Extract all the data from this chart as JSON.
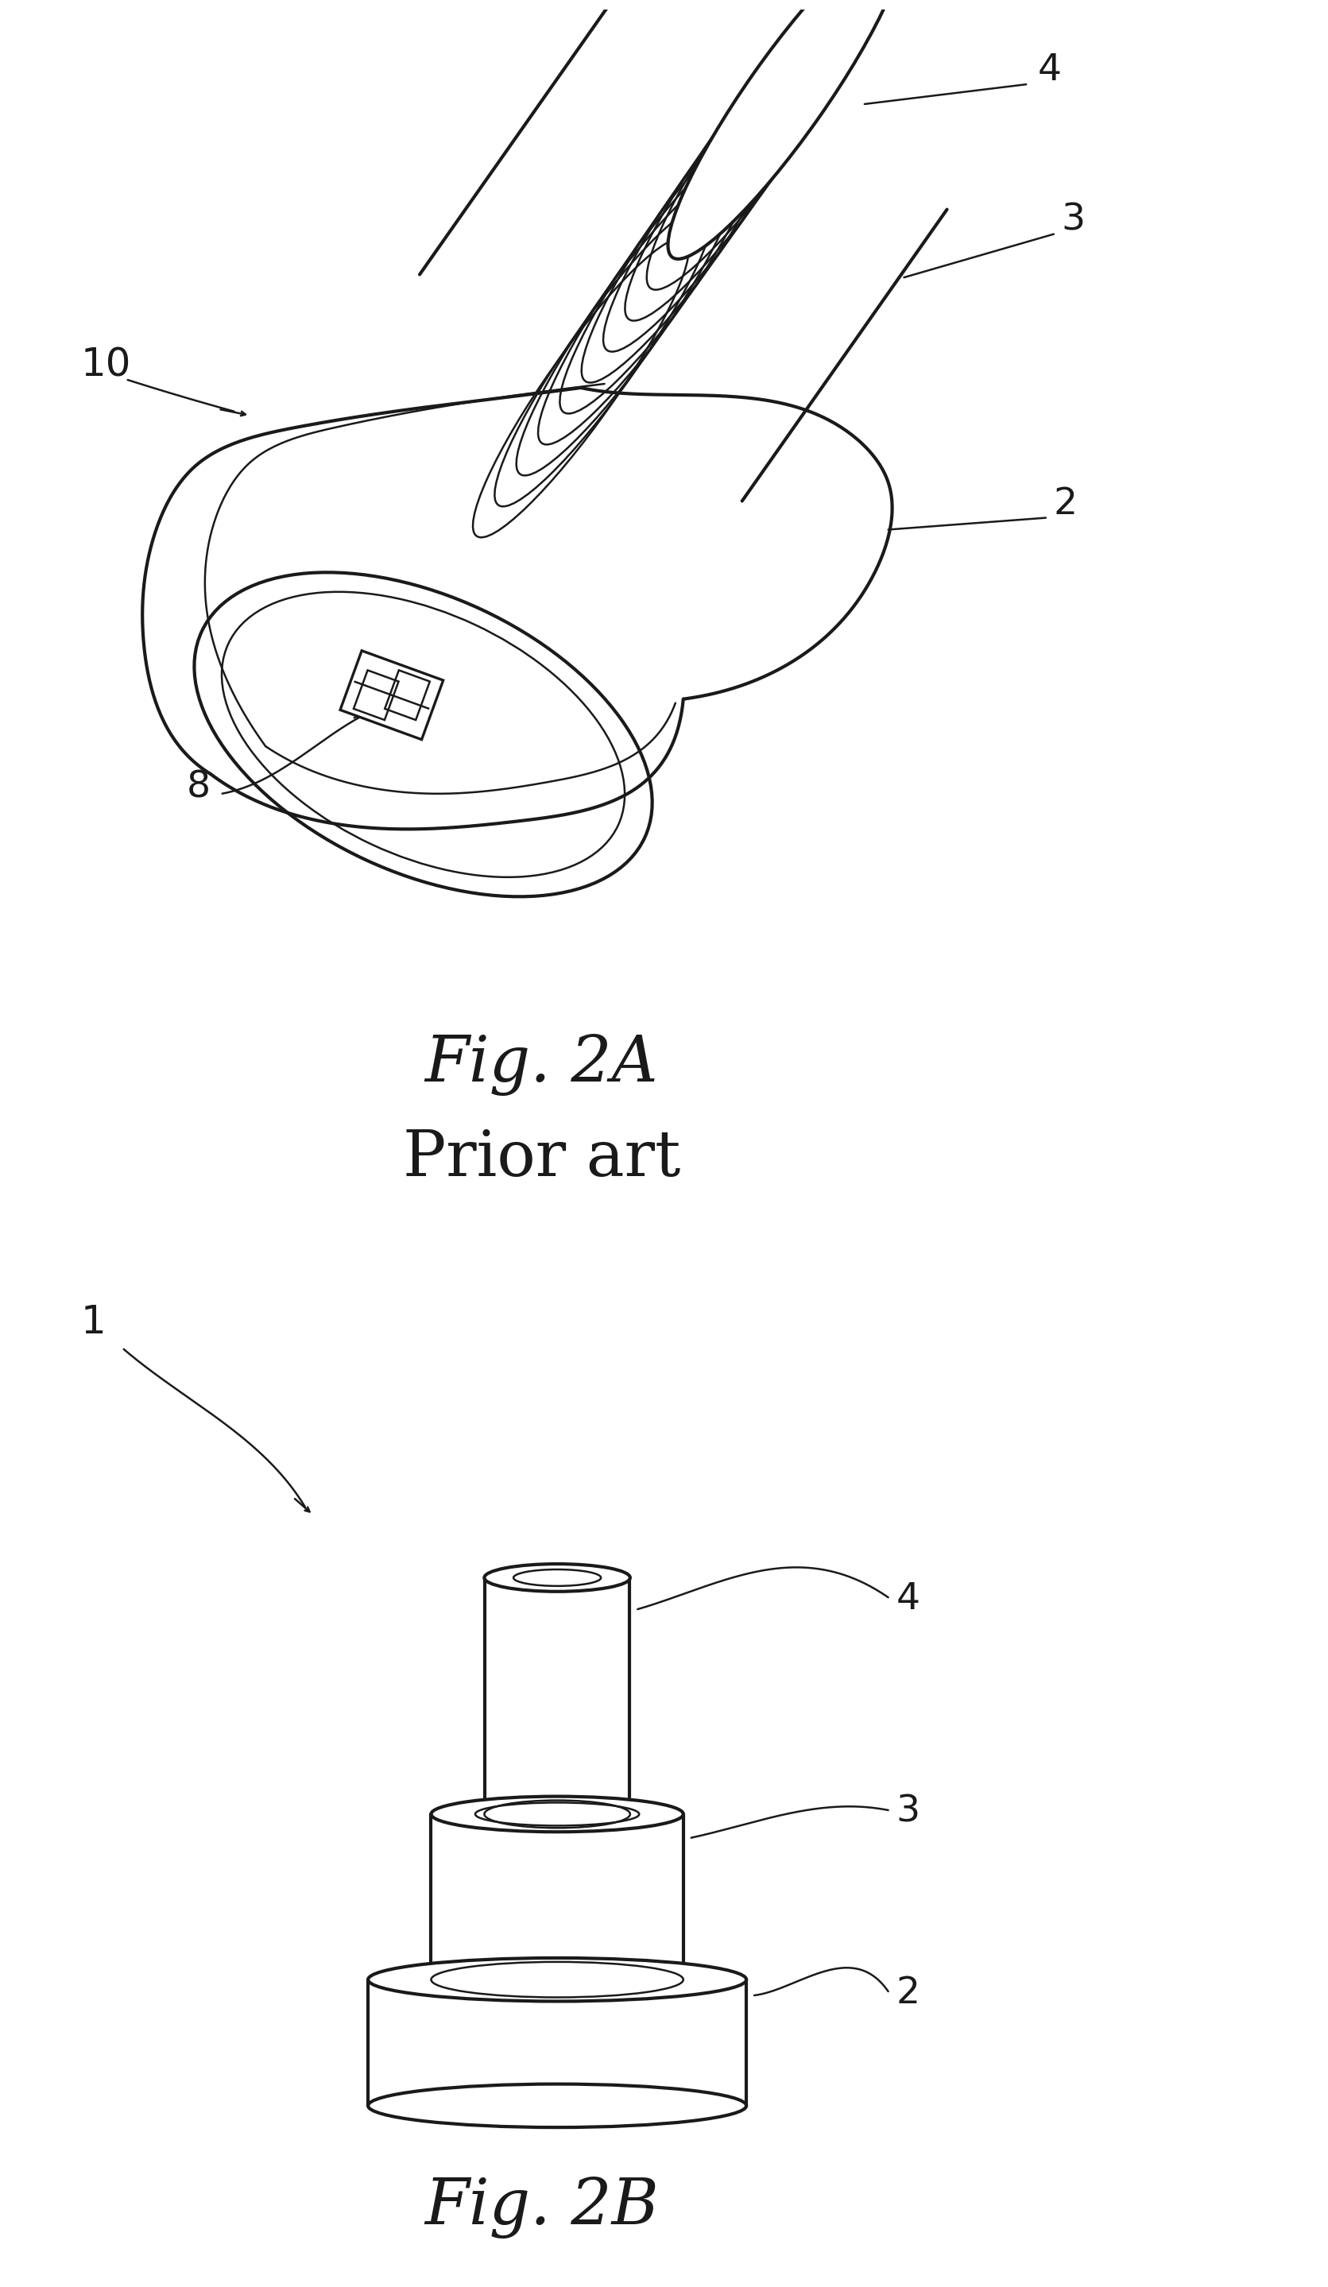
{
  "bg_color": "#ffffff",
  "line_color": "#1a1a1a",
  "fig_width": 16.71,
  "fig_height": 28.78,
  "fig2a_label": "Fig. 2A",
  "fig2a_sublabel": "Prior art",
  "fig2b_label": "Fig. 2B",
  "label_10": "10",
  "label_1": "1",
  "label_2a_2": "2",
  "label_2a_3": "3",
  "label_2a_4": "4",
  "label_2a_8": "8",
  "label_2b_2": "2",
  "label_2b_3": "3",
  "label_2b_4": "4"
}
